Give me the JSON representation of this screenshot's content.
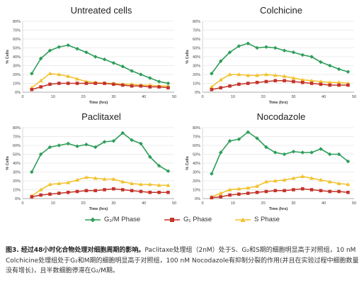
{
  "legend": {
    "g2m": "G₂/M Phase",
    "g1": "G₁ Phase",
    "s": "S Phase"
  },
  "colors": {
    "g2m": "#2e9e5b",
    "g1": "#c4342a",
    "s": "#f2c22e"
  },
  "caption": {
    "bold": "图3. 经过48小时化合物处理对细胞周期的影响。",
    "text": "Paclitaxe处理组（2nM）处于S、G₂和S期的细胞明显高于对照组，10 nM Colchicine处理组处于G₂和M期的细胞明显高于对照组，100 nM Nocodazole有抑制分裂的作用(并且在实验过程中细胞数量没有增长)，且半数细胞停滞在G₂/M期。"
  },
  "chart_data": [
    {
      "type": "line",
      "title": "Untreated cells",
      "xlabel": "Time (hrs)",
      "ylabel": "% Cells",
      "xlim": [
        0,
        50
      ],
      "ylim": [
        0,
        80
      ],
      "xticks": [
        0,
        10,
        20,
        30,
        40,
        50
      ],
      "yticks": [
        0,
        10,
        20,
        30,
        40,
        50,
        60,
        70,
        80
      ],
      "ytick_labels": [
        "0%",
        "10%",
        "20%",
        "30%",
        "40%",
        "50%",
        "60%",
        "70%",
        "80%"
      ],
      "x": [
        3,
        6,
        9,
        12,
        15,
        18,
        21,
        24,
        27,
        30,
        33,
        36,
        39,
        42,
        45,
        48
      ],
      "series": [
        {
          "key": "g2m",
          "values": [
            21,
            38,
            47,
            51,
            53,
            49,
            45,
            40,
            37,
            33,
            29,
            24,
            20,
            16,
            12,
            10
          ]
        },
        {
          "key": "g1",
          "values": [
            3,
            6,
            9,
            10,
            10,
            10,
            10,
            10,
            10,
            9,
            8,
            7,
            7,
            6,
            6,
            5
          ]
        },
        {
          "key": "s",
          "values": [
            5,
            13,
            21,
            20,
            18,
            15,
            12,
            11,
            10,
            10,
            9,
            9,
            8,
            8,
            7,
            7
          ]
        }
      ]
    },
    {
      "type": "line",
      "title": "Colchicine",
      "xlabel": "Time (hrs)",
      "ylabel": "% Cells",
      "xlim": [
        0,
        50
      ],
      "ylim": [
        0,
        80
      ],
      "xticks": [
        0,
        10,
        20,
        30,
        40,
        50
      ],
      "yticks": [
        0,
        10,
        20,
        30,
        40,
        50,
        60,
        70,
        80
      ],
      "ytick_labels": [
        "0%",
        "10%",
        "20%",
        "30%",
        "40%",
        "50%",
        "60%",
        "70%",
        "80%"
      ],
      "x": [
        3,
        6,
        9,
        12,
        15,
        18,
        21,
        24,
        27,
        30,
        33,
        36,
        39,
        42,
        45,
        48
      ],
      "series": [
        {
          "key": "g2m",
          "values": [
            21,
            35,
            45,
            52,
            55,
            50,
            51,
            50,
            47,
            45,
            42,
            40,
            34,
            30,
            26,
            23
          ]
        },
        {
          "key": "g1",
          "values": [
            3,
            5,
            7,
            9,
            10,
            11,
            12,
            13,
            13,
            12,
            11,
            10,
            9,
            8,
            8,
            8
          ]
        },
        {
          "key": "s",
          "values": [
            6,
            14,
            20,
            20,
            19,
            19,
            20,
            19,
            18,
            16,
            14,
            13,
            12,
            11,
            11,
            10
          ]
        }
      ]
    },
    {
      "type": "line",
      "title": "Paclitaxel",
      "xlabel": "Time (hrs)",
      "ylabel": "% Cells",
      "xlim": [
        0,
        50
      ],
      "ylim": [
        0,
        80
      ],
      "xticks": [
        0,
        10,
        20,
        30,
        40,
        50
      ],
      "yticks": [
        0,
        10,
        20,
        30,
        40,
        50,
        60,
        70,
        80
      ],
      "ytick_labels": [
        "0%",
        "10%",
        "20%",
        "30%",
        "40%",
        "50%",
        "60%",
        "70%",
        "80%"
      ],
      "x": [
        3,
        6,
        9,
        12,
        15,
        18,
        21,
        24,
        27,
        30,
        33,
        36,
        39,
        42,
        45,
        48
      ],
      "series": [
        {
          "key": "g2m",
          "values": [
            30,
            50,
            58,
            60,
            62,
            59,
            61,
            58,
            64,
            65,
            74,
            66,
            62,
            47,
            37,
            31
          ]
        },
        {
          "key": "g1",
          "values": [
            2,
            4,
            5,
            6,
            7,
            8,
            9,
            9,
            10,
            11,
            10,
            9,
            8,
            7,
            7,
            7
          ]
        },
        {
          "key": "s",
          "values": [
            3,
            10,
            16,
            17,
            18,
            21,
            24,
            23,
            22,
            22,
            19,
            17,
            16,
            16,
            15,
            15
          ]
        }
      ]
    },
    {
      "type": "line",
      "title": "Nocodazole",
      "xlabel": "Time (hrs)",
      "ylabel": "% Cells",
      "xlim": [
        0,
        50
      ],
      "ylim": [
        0,
        80
      ],
      "xticks": [
        0,
        10,
        20,
        30,
        40,
        50
      ],
      "yticks": [
        0,
        10,
        20,
        30,
        40,
        50,
        60,
        70,
        80
      ],
      "ytick_labels": [
        "0%",
        "10%",
        "20%",
        "30%",
        "40%",
        "50%",
        "60%",
        "70%",
        "80%"
      ],
      "x": [
        3,
        6,
        9,
        12,
        15,
        18,
        21,
        24,
        27,
        30,
        33,
        36,
        39,
        42,
        45,
        48
      ],
      "series": [
        {
          "key": "g2m",
          "values": [
            28,
            52,
            65,
            67,
            75,
            68,
            58,
            52,
            50,
            53,
            52,
            52,
            56,
            50,
            50,
            42
          ]
        },
        {
          "key": "g1",
          "values": [
            1,
            2,
            4,
            5,
            6,
            7,
            8,
            9,
            9,
            10,
            11,
            10,
            9,
            8,
            8,
            7
          ]
        },
        {
          "key": "s",
          "values": [
            2,
            6,
            10,
            11,
            12,
            14,
            19,
            20,
            21,
            23,
            25,
            23,
            21,
            19,
            17,
            16
          ]
        }
      ]
    }
  ]
}
